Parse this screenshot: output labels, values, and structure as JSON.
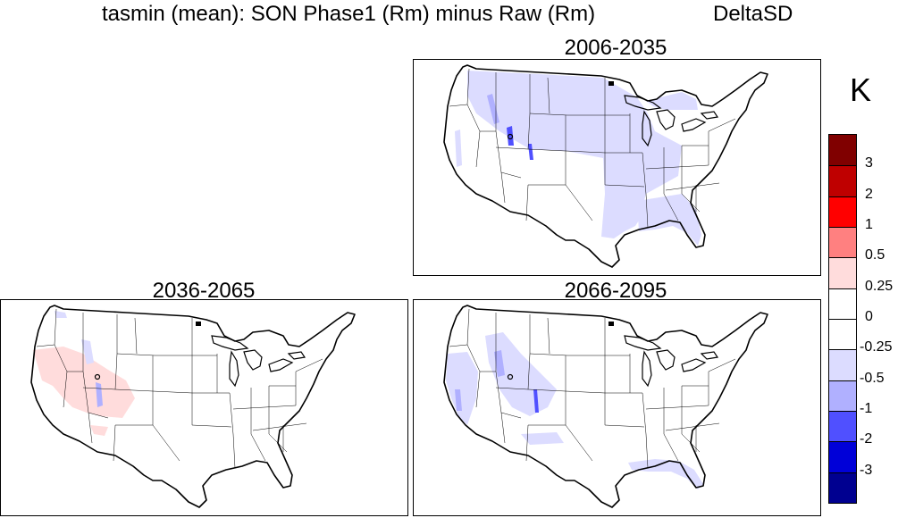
{
  "title": {
    "main": "tasmin (mean): SON Phase1 (Rm) minus Raw (Rm)",
    "right": "DeltaSD"
  },
  "panels": [
    {
      "id": "p1",
      "label": "2006-2035",
      "pattern": "blue-east"
    },
    {
      "id": "p2",
      "label": "2036-2065",
      "pattern": "red-west"
    },
    {
      "id": "p3",
      "label": "2066-2095",
      "pattern": "blue-west-se"
    }
  ],
  "colorbar": {
    "unit": "K",
    "colors": [
      "#800000",
      "#bf0000",
      "#ff0000",
      "#ff8080",
      "#ffdcdc",
      "#ffffff",
      "#ffffff",
      "#dcdcff",
      "#b0b0ff",
      "#5050ff",
      "#0000d8",
      "#000090"
    ],
    "labels": [
      "3",
      "2",
      "1",
      "0.5",
      "0.25",
      "0",
      "-0.25",
      "-0.5",
      "-1",
      "-2",
      "-3"
    ]
  }
}
